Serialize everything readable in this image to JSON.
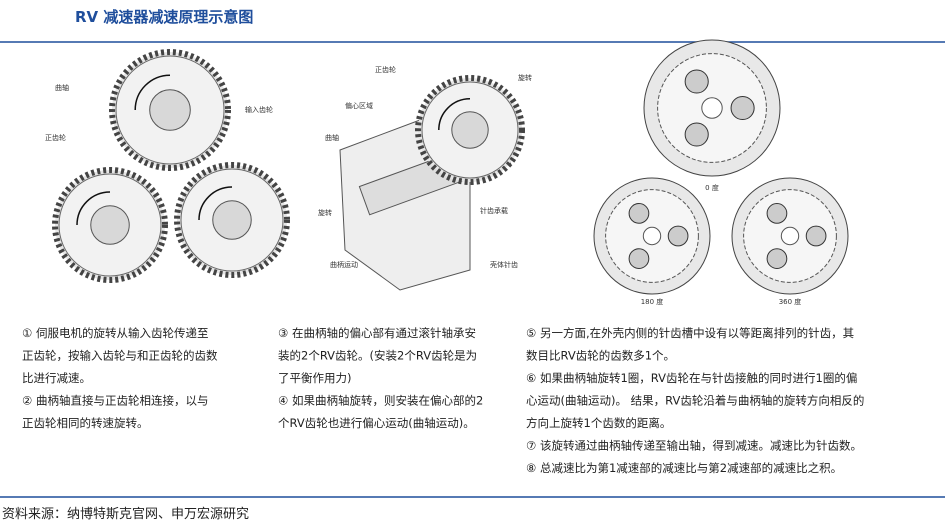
{
  "header": {
    "title": "RV 减速器减速原理示意图"
  },
  "panels": [
    {
      "labels": [
        "曲轴",
        "正齿轮",
        "输入齿轮"
      ]
    },
    {
      "labels": [
        "正齿轮",
        "偏心区域",
        "曲轴",
        "旋转",
        "针齿承载",
        "旋转",
        "曲柄运动",
        "壳体针齿"
      ]
    },
    {
      "labels": [
        "0 度",
        "180 度",
        "360 度"
      ]
    }
  ],
  "columns": [
    [
      "① 伺服电机的旋转从输入齿轮传递至",
      "正齿轮，按输入齿轮与和正齿轮的齿数",
      "比进行减速。",
      "② 曲柄轴直接与正齿轮相连接，以与",
      "正齿轮相同的转速旋转。"
    ],
    [
      "③ 在曲柄轴的偏心部有通过滚针轴承安",
      "装的2个RV齿轮。(安装2个RV齿轮是为",
      "了平衡作用力)",
      "④ 如果曲柄轴旋转，则安装在偏心部的2",
      "个RV齿轮也进行偏心运动(曲轴运动)。"
    ],
    [
      "⑤ 另一方面,在外壳内侧的针齿槽中设有以等距离排列的针齿，其",
      "数目比RV齿轮的齿数多1个。",
      "⑥ 如果曲柄轴旋转1圈，RV齿轮在与针齿接触的同时进行1圈的偏",
      "心运动(曲轴运动)。 结果，RV齿轮沿着与曲柄轴的旋转方向相反的",
      "方向上旋转1个齿数的距离。",
      "⑦ 该旋转通过曲柄轴传递至输出轴，得到减速。减速比为针齿数。",
      "⑧ 总减速比为第1减速部的减速比与第2减速部的减速比之积。"
    ]
  ],
  "source": "资料来源：纳博特斯克官网、申万宏源研究"
}
